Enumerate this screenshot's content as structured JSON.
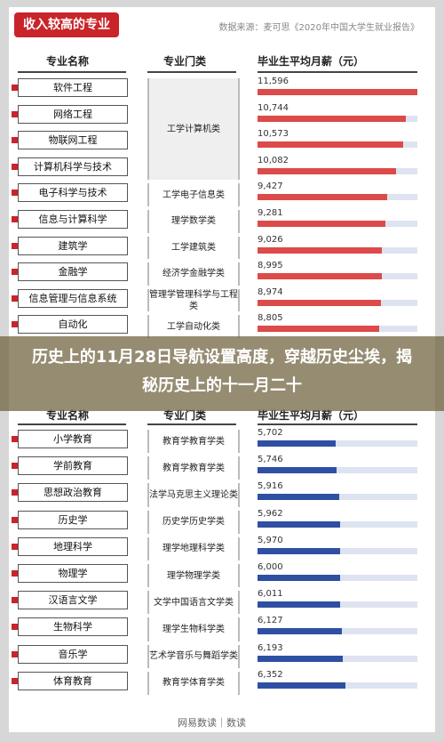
{
  "top_tag": "收入较高的专业",
  "source": "数据来源：麦可思《2020年中国大学生就业报告》",
  "headers": {
    "major": "专业名称",
    "category": "专业门类",
    "salary": "毕业生平均月薪（元）"
  },
  "banner": {
    "text": "历史上的11月28日导航设置高度，穿越历史尘埃，揭秘历史上的十一月二十"
  },
  "footer": "网易数读｜数读",
  "colors": {
    "high_bar": "#dc4a4a",
    "low_bar": "#2f4fa3",
    "track": "#dde3f0",
    "tag": "#c8242a"
  },
  "chart_data": [
    {
      "type": "bar",
      "title": "收入较高的专业",
      "categories": [
        "软件工程",
        "网络工程",
        "物联网工程",
        "计算机科学与技术",
        "电子科学与技术",
        "信息与计算科学",
        "建筑学",
        "金融学",
        "信息管理与信息系统",
        "自动化"
      ],
      "values": [
        11596,
        10744,
        10573,
        10082,
        9427,
        9281,
        9026,
        8995,
        8974,
        8805
      ],
      "value_labels": [
        "11,596",
        "10,744",
        "10,573",
        "10,082",
        "9,427",
        "9,281",
        "9,026",
        "8,995",
        "8,974",
        "8,805"
      ],
      "groups": [
        {
          "label": "工学计算机类",
          "span": 4
        },
        {
          "label": "工学电子信息类",
          "span": 1
        },
        {
          "label": "理学数学类",
          "span": 1
        },
        {
          "label": "工学建筑类",
          "span": 1
        },
        {
          "label": "经济学金融学类",
          "span": 1
        },
        {
          "label": "管理学管理科学与工程类",
          "span": 1
        },
        {
          "label": "工学自动化类",
          "span": 1
        }
      ],
      "ylim": [
        0,
        11600
      ]
    },
    {
      "type": "bar",
      "categories": [
        "小学教育",
        "学前教育",
        "思想政治教育",
        "历史学",
        "地理科学",
        "物理学",
        "汉语言文学",
        "生物科学",
        "音乐学",
        "体育教育"
      ],
      "values": [
        5702,
        5746,
        5916,
        5962,
        5970,
        6000,
        6011,
        6127,
        6193,
        6352
      ],
      "value_labels": [
        "5,702",
        "5,746",
        "5,916",
        "5,962",
        "5,970",
        "6,000",
        "6,011",
        "6,127",
        "6,193",
        "6,352"
      ],
      "groups": [
        {
          "label": "教育学教育学类",
          "span": 1
        },
        {
          "label": "教育学教育学类",
          "span": 1
        },
        {
          "label": "法学马克思主义理论类",
          "span": 1
        },
        {
          "label": "历史学历史学类",
          "span": 1
        },
        {
          "label": "理学地理科学类",
          "span": 1
        },
        {
          "label": "理学物理学类",
          "span": 1
        },
        {
          "label": "文学中国语言文学类",
          "span": 1
        },
        {
          "label": "理学生物科学类",
          "span": 1
        },
        {
          "label": "艺术学音乐与舞蹈学类",
          "span": 1
        },
        {
          "label": "教育学体育学类",
          "span": 1
        }
      ],
      "ylim": [
        0,
        11600
      ]
    }
  ]
}
